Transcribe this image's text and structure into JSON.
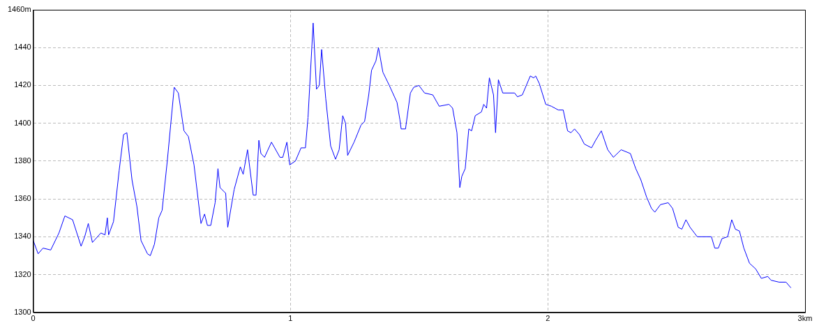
{
  "chart_data": {
    "type": "line",
    "xlim": [
      0,
      3
    ],
    "ylim": [
      1300,
      1460
    ],
    "xticks": [
      0,
      1,
      2,
      {
        "value": 3,
        "label": "3km"
      }
    ],
    "yticks": [
      1300,
      1320,
      1340,
      1360,
      1380,
      1400,
      1420,
      1440,
      {
        "value": 1460,
        "label": "1460m"
      }
    ],
    "grid": true,
    "marker": "none",
    "line_style": "solid",
    "series": [
      {
        "color": "#0000ff",
        "x": [
          0,
          0.019,
          0.038,
          0.068,
          0.1,
          0.123,
          0.153,
          0.186,
          0.2,
          0.214,
          0.23,
          0.263,
          0.279,
          0.288,
          0.293,
          0.312,
          0.334,
          0.351,
          0.364,
          0.384,
          0.403,
          0.419,
          0.444,
          0.455,
          0.471,
          0.488,
          0.501,
          0.521,
          0.548,
          0.564,
          0.586,
          0.603,
          0.625,
          0.652,
          0.666,
          0.677,
          0.69,
          0.707,
          0.718,
          0.726,
          0.748,
          0.756,
          0.781,
          0.805,
          0.816,
          0.833,
          0.855,
          0.866,
          0.877,
          0.885,
          0.899,
          0.926,
          0.959,
          0.97,
          0.986,
          0.997,
          1.019,
          1.041,
          1.058,
          1.068,
          1.088,
          1.101,
          1.112,
          1.121,
          1.137,
          1.156,
          1.175,
          1.189,
          1.203,
          1.214,
          1.222,
          1.247,
          1.274,
          1.288,
          1.304,
          1.315,
          1.332,
          1.342,
          1.359,
          1.384,
          1.414,
          1.425,
          1.43,
          1.447,
          1.466,
          1.479,
          1.499,
          1.521,
          1.553,
          1.578,
          1.616,
          1.63,
          1.647,
          1.658,
          1.666,
          1.679,
          1.693,
          1.704,
          1.718,
          1.742,
          1.751,
          1.762,
          1.773,
          1.789,
          1.797,
          1.808,
          1.825,
          1.871,
          1.882,
          1.901,
          1.932,
          1.945,
          1.953,
          1.967,
          1.992,
          2.014,
          2.041,
          2.06,
          2.077,
          2.09,
          2.104,
          2.123,
          2.142,
          2.17,
          2.186,
          2.208,
          2.233,
          2.255,
          2.285,
          2.321,
          2.342,
          2.362,
          2.384,
          2.403,
          2.416,
          2.438,
          2.468,
          2.485,
          2.507,
          2.521,
          2.537,
          2.553,
          2.581,
          2.636,
          2.649,
          2.663,
          2.677,
          2.699,
          2.715,
          2.729,
          2.745,
          2.762,
          2.784,
          2.808,
          2.83,
          2.855,
          2.868,
          2.899,
          2.926,
          2.945
        ],
        "values": [
          1338,
          1331,
          1334,
          1333,
          1342,
          1351,
          1349,
          1335,
          1340,
          1347,
          1337,
          1342,
          1341,
          1350,
          1341,
          1348,
          1375,
          1394,
          1395,
          1370,
          1356,
          1338,
          1331,
          1330,
          1336,
          1350,
          1354,
          1380,
          1419,
          1416,
          1396,
          1393,
          1378,
          1347,
          1352,
          1346,
          1346,
          1358,
          1376,
          1366,
          1363,
          1345,
          1365,
          1377,
          1373,
          1386,
          1362,
          1362,
          1391,
          1384,
          1382,
          1390,
          1382,
          1382,
          1390,
          1378,
          1380,
          1387,
          1387,
          1403,
          1453,
          1418,
          1420,
          1439,
          1413,
          1388,
          1381,
          1386,
          1404,
          1400,
          1383,
          1390,
          1399,
          1401,
          1415,
          1428,
          1433,
          1440,
          1427,
          1420,
          1411,
          1402,
          1397,
          1397,
          1416,
          1419,
          1420,
          1416,
          1415,
          1409,
          1410,
          1408,
          1395,
          1366,
          1372,
          1376,
          1397,
          1396,
          1404,
          1406,
          1410,
          1408,
          1424,
          1415,
          1395,
          1423,
          1416,
          1416,
          1414,
          1415,
          1425,
          1424,
          1425,
          1421,
          1410,
          1409,
          1407,
          1407,
          1396,
          1395,
          1397,
          1394,
          1389,
          1387,
          1391,
          1396,
          1386,
          1382,
          1386,
          1384,
          1376,
          1370,
          1361,
          1355,
          1353,
          1357,
          1358,
          1355,
          1345,
          1344,
          1349,
          1345,
          1340,
          1340,
          1334,
          1334,
          1339,
          1340,
          1349,
          1344,
          1343,
          1334,
          1326,
          1323,
          1318,
          1319,
          1317,
          1316,
          1316,
          1313
        ]
      }
    ]
  }
}
